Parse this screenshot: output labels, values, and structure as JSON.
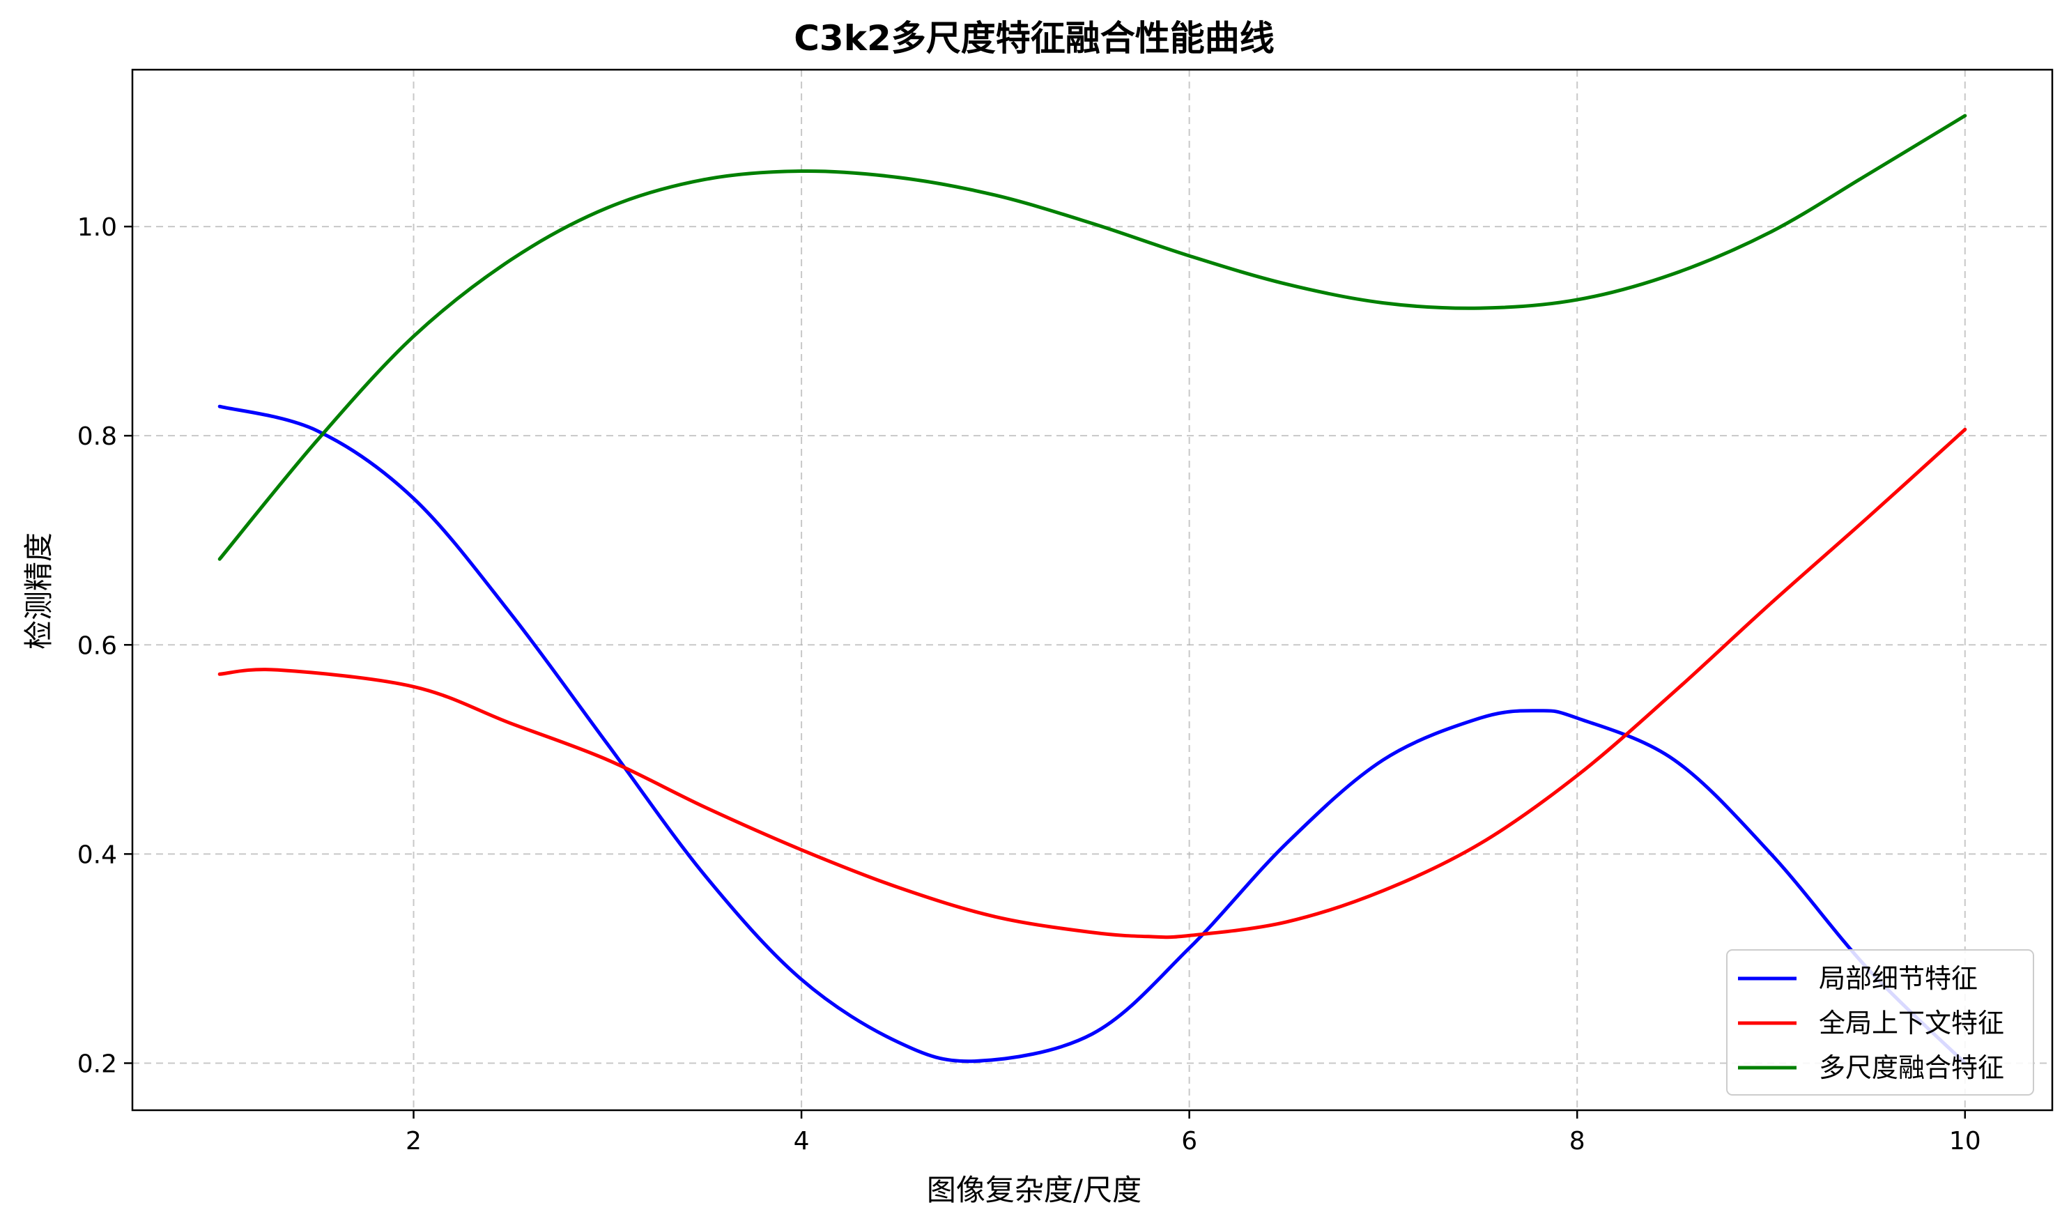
{
  "chart_data": {
    "type": "line",
    "title": "C3k2多尺度特征融合性能曲线",
    "xlabel": "图像复杂度/尺度",
    "ylabel": "检测精度",
    "xlim": [
      0.55,
      10.45
    ],
    "ylim": [
      0.155,
      1.15
    ],
    "xticks": [
      2,
      4,
      6,
      8,
      10
    ],
    "yticks": [
      0.2,
      0.4,
      0.6,
      0.8,
      1.0
    ],
    "xtick_labels": [
      "2",
      "4",
      "6",
      "8",
      "10"
    ],
    "ytick_labels": [
      "0.2",
      "0.4",
      "0.6",
      "0.8",
      "1.0"
    ],
    "grid": true,
    "legend_position": "lower right",
    "series": [
      {
        "name": "局部细节特征",
        "color": "#0000ff",
        "x": [
          1.0,
          1.5,
          2.0,
          2.5,
          3.0,
          3.5,
          4.0,
          4.5,
          4.9,
          5.5,
          6.0,
          6.5,
          7.0,
          7.5,
          7.8,
          8.0,
          8.5,
          9.0,
          9.5,
          10.0
        ],
        "y": [
          0.828,
          0.805,
          0.74,
          0.63,
          0.505,
          0.38,
          0.28,
          0.22,
          0.202,
          0.228,
          0.31,
          0.41,
          0.49,
          0.53,
          0.537,
          0.53,
          0.49,
          0.4,
          0.29,
          0.2
        ]
      },
      {
        "name": "全局上下文特征",
        "color": "#ff0000",
        "x": [
          1.0,
          1.3,
          2.0,
          2.5,
          3.0,
          3.5,
          4.0,
          4.5,
          5.0,
          5.5,
          5.8,
          6.0,
          6.5,
          7.0,
          7.5,
          8.0,
          8.5,
          9.0,
          9.5,
          10.0
        ],
        "y": [
          0.572,
          0.576,
          0.56,
          0.525,
          0.49,
          0.445,
          0.404,
          0.368,
          0.34,
          0.325,
          0.321,
          0.322,
          0.335,
          0.365,
          0.41,
          0.475,
          0.555,
          0.64,
          0.722,
          0.806
        ]
      },
      {
        "name": "多尺度融合特征",
        "color": "#008000",
        "x": [
          1.0,
          1.5,
          2.0,
          2.5,
          3.0,
          3.5,
          4.0,
          4.5,
          5.0,
          5.5,
          6.0,
          6.5,
          7.0,
          7.5,
          8.0,
          8.5,
          9.0,
          9.5,
          10.0
        ],
        "y": [
          0.682,
          0.795,
          0.895,
          0.968,
          1.018,
          1.045,
          1.053,
          1.047,
          1.03,
          1.003,
          0.972,
          0.945,
          0.927,
          0.922,
          0.93,
          0.955,
          0.995,
          1.05,
          1.106
        ]
      }
    ]
  }
}
